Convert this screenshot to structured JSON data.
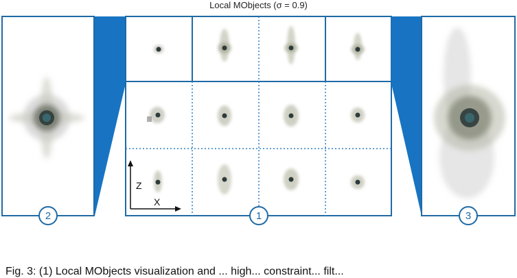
{
  "title": "Local MObjects (σ = 0.9)",
  "badges": [
    "2",
    "1",
    "3"
  ],
  "axis_labels": {
    "z": "Z",
    "x": "X"
  },
  "caption": "Fig. 3: (1) Local MObjects visualization and ... high... constraint... filt...",
  "colors": {
    "accent": "#1874c2",
    "border": "#1f6aa5",
    "grid": "#2a7fc4"
  },
  "icons": [
    "circle-badge-icon",
    "axis-arrows-icon"
  ]
}
